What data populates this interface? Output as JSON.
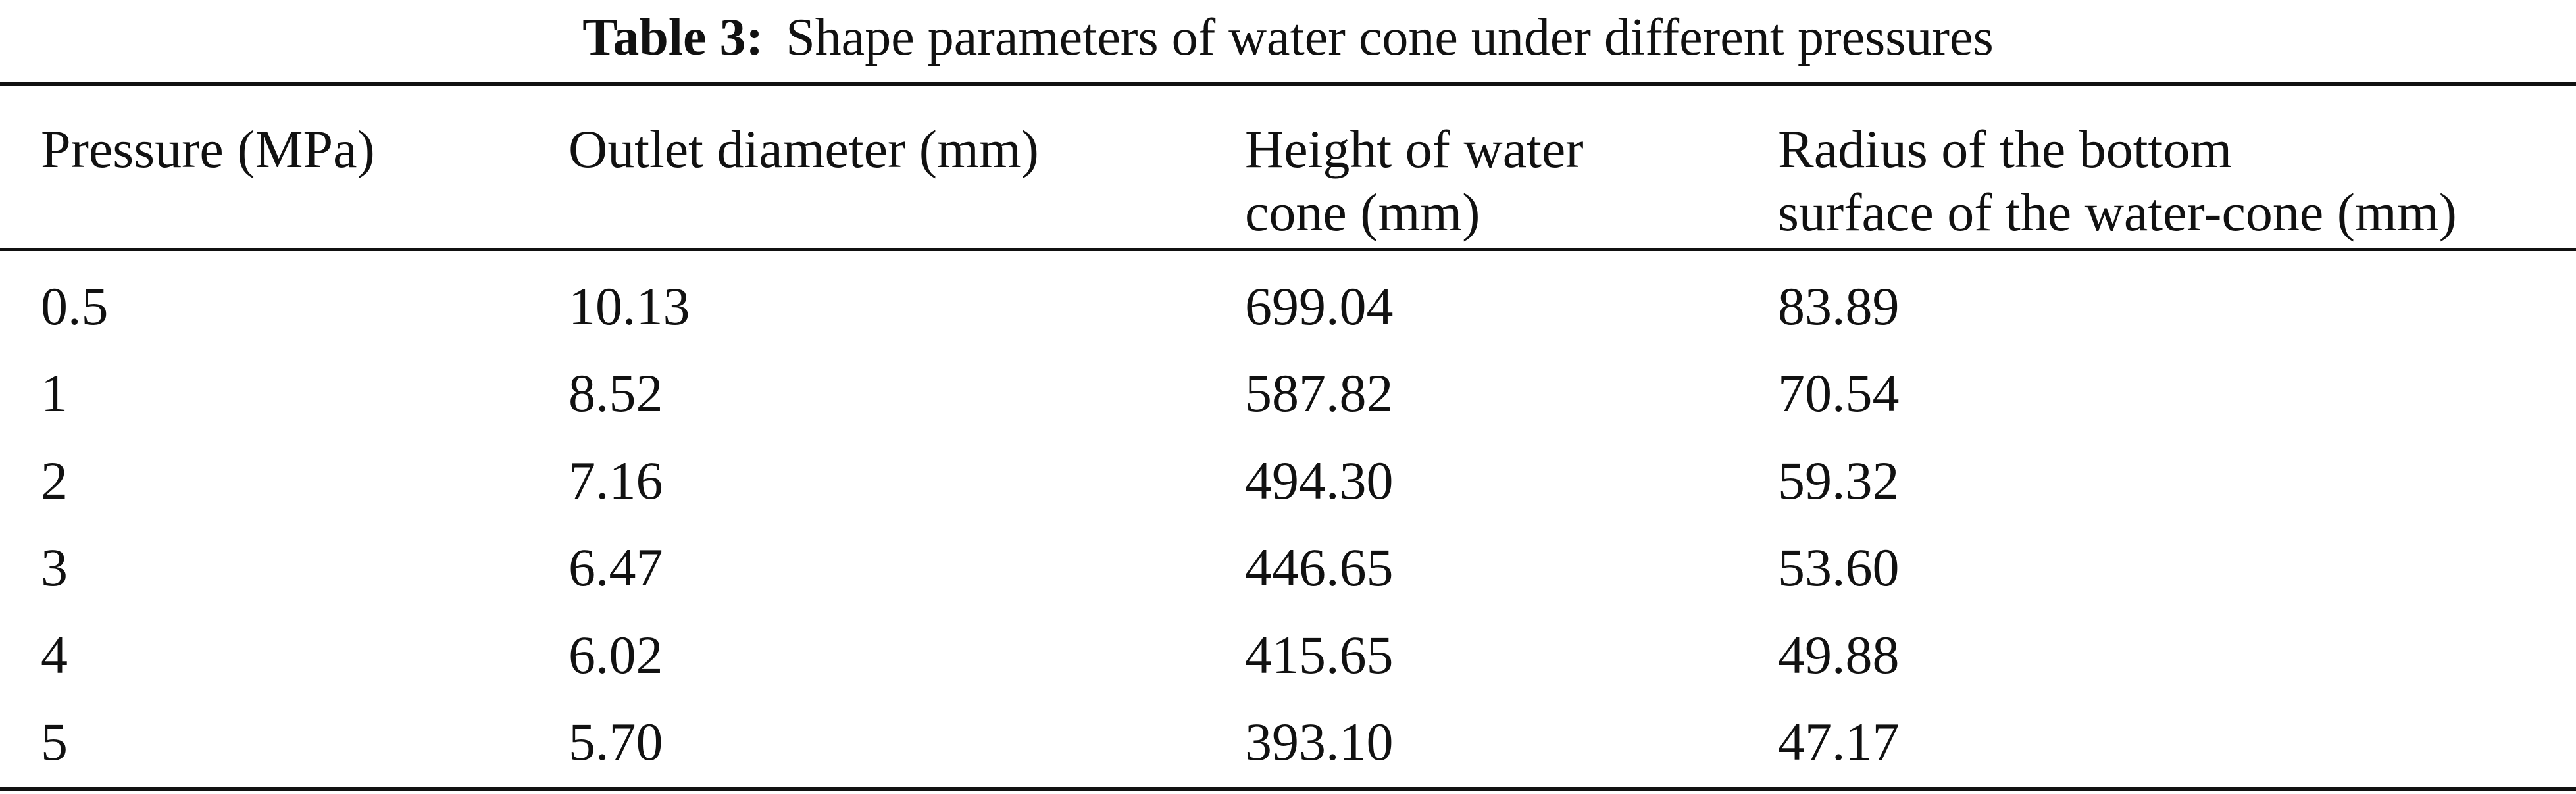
{
  "caption": {
    "label": "Table 3:",
    "text": "Shape parameters of water cone under different pressures"
  },
  "table": {
    "headers": [
      {
        "line1": "Pressure (MPa)",
        "line2": ""
      },
      {
        "line1": "Outlet diameter (mm)",
        "line2": ""
      },
      {
        "line1": "Height of water",
        "line2": "cone (mm)"
      },
      {
        "line1": "Radius of the bottom",
        "line2": "surface of the water-cone (mm)"
      }
    ],
    "rows": [
      [
        "0.5",
        "10.13",
        "699.04",
        "83.89"
      ],
      [
        "1",
        "8.52",
        "587.82",
        "70.54"
      ],
      [
        "2",
        "7.16",
        "494.30",
        "59.32"
      ],
      [
        "3",
        "6.47",
        "446.65",
        "53.60"
      ],
      [
        "4",
        "6.02",
        "415.65",
        "49.88"
      ],
      [
        "5",
        "5.70",
        "393.10",
        "47.17"
      ]
    ]
  }
}
